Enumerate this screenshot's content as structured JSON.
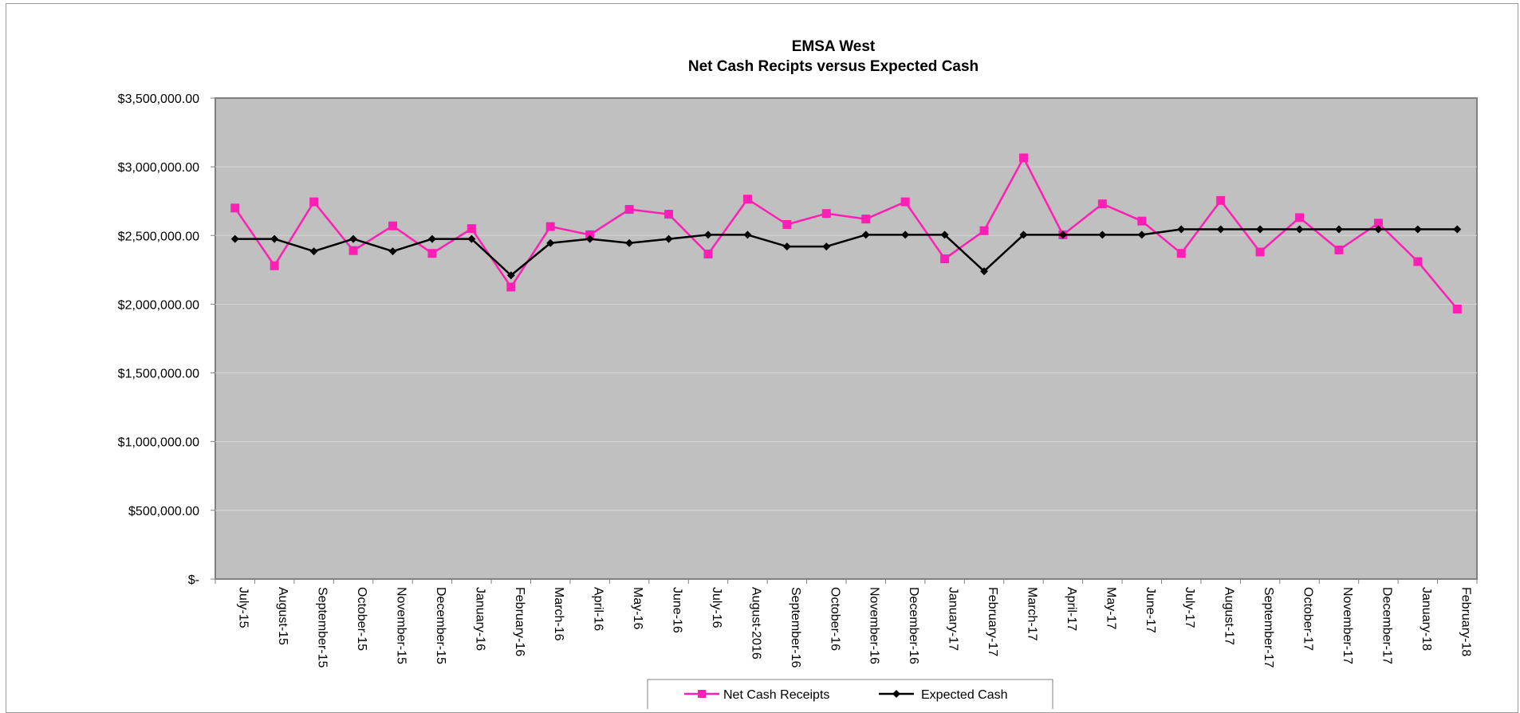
{
  "chart_data": {
    "type": "line",
    "title": "EMSA West",
    "subtitle": "Net Cash Recipts versus Expected Cash",
    "categories": [
      "July-15",
      "August-15",
      "September-15",
      "October-15",
      "November-15",
      "December-15",
      "January-16",
      "February-16",
      "March-16",
      "April-16",
      "May-16",
      "June-16",
      "July-16",
      "August-2016",
      "September-16",
      "October-16",
      "November-16",
      "December-16",
      "January-17",
      "February-17",
      "March-17",
      "April-17",
      "May-17",
      "June-17",
      "July-17",
      "August-17",
      "September-17",
      "October-17",
      "November-17",
      "December-17",
      "January-18",
      "February-18"
    ],
    "yticks": [
      "$3,500,000.00",
      "$3,000,000.00",
      "$2,500,000.00",
      "$2,000,000.00",
      "$1,500,000.00",
      "$1,000,000.00",
      "$500,000.00",
      "$-"
    ],
    "ylim": [
      0,
      3500000
    ],
    "ytick_values": [
      3500000,
      3000000,
      2500000,
      2000000,
      1500000,
      1000000,
      500000,
      0
    ],
    "grid": true,
    "plot_background": "#c0c0c0",
    "legend_position": "bottom",
    "series": [
      {
        "name": "Net Cash Receipts",
        "color": "#ff1fb4",
        "marker": "square",
        "values": [
          2700000,
          2280000,
          2745000,
          2390000,
          2570000,
          2370000,
          2550000,
          2125000,
          2565000,
          2505000,
          2690000,
          2655000,
          2365000,
          2765000,
          2580000,
          2660000,
          2620000,
          2745000,
          2330000,
          2535000,
          3065000,
          2505000,
          2730000,
          2605000,
          2370000,
          2755000,
          2380000,
          2630000,
          2395000,
          2590000,
          2310000,
          1965000
        ]
      },
      {
        "name": "Expected Cash",
        "color": "#000000",
        "marker": "diamond",
        "values": [
          2475000,
          2475000,
          2385000,
          2475000,
          2385000,
          2475000,
          2475000,
          2210000,
          2445000,
          2475000,
          2445000,
          2475000,
          2505000,
          2505000,
          2420000,
          2420000,
          2505000,
          2505000,
          2505000,
          2240000,
          2505000,
          2505000,
          2505000,
          2505000,
          2545000,
          2545000,
          2545000,
          2545000,
          2545000,
          2545000,
          2545000,
          2545000
        ]
      }
    ]
  }
}
